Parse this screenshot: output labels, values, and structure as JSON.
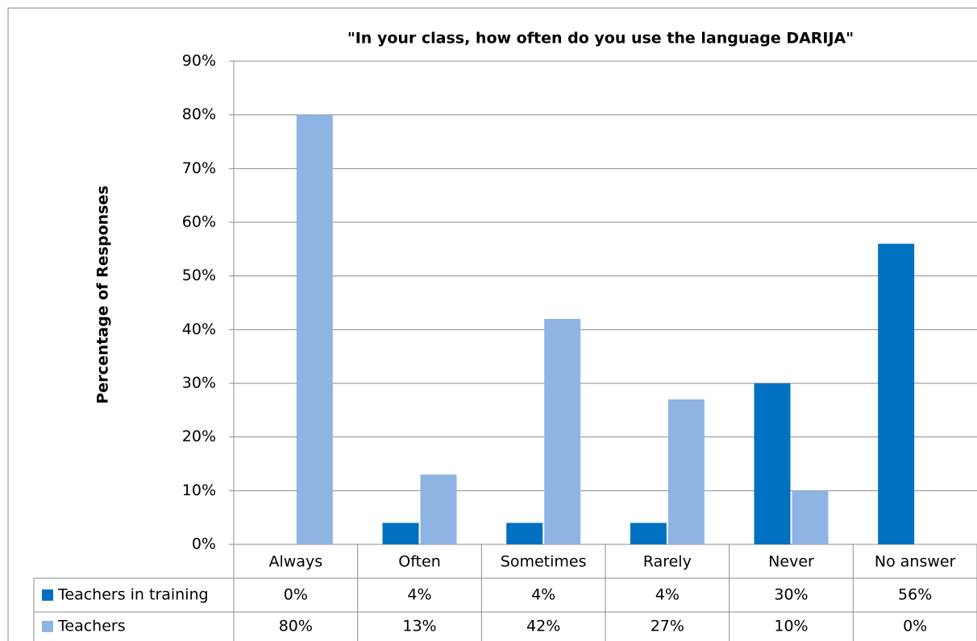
{
  "chart_data": {
    "type": "bar",
    "title": "\"In your class, how often do you use the language DARIJA\"",
    "y_label": "Percentage of Responses",
    "categories": [
      "Always",
      "Often",
      "Sometimes",
      "Rarely",
      "Never",
      "No answer"
    ],
    "series": [
      {
        "name": "Teachers in training",
        "color": "#0070c0",
        "values": [
          0,
          4,
          4,
          4,
          30,
          56
        ],
        "value_labels": [
          "0%",
          "4%",
          "4%",
          "4%",
          "30%",
          "56%"
        ]
      },
      {
        "name": "Teachers",
        "color": "#8eb4e3",
        "values": [
          80,
          13,
          42,
          27,
          10,
          0
        ],
        "value_labels": [
          "80%",
          "13%",
          "42%",
          "27%",
          "10%",
          "0%"
        ]
      }
    ],
    "ylim": [
      0,
      90
    ],
    "yticks": [
      {
        "value": 0,
        "label": "0%"
      },
      {
        "value": 10,
        "label": "10%"
      },
      {
        "value": 20,
        "label": "20%"
      },
      {
        "value": 30,
        "label": "30%"
      },
      {
        "value": 40,
        "label": "40%"
      },
      {
        "value": 50,
        "label": "50%"
      },
      {
        "value": 60,
        "label": "60%"
      },
      {
        "value": 70,
        "label": "70%"
      },
      {
        "value": 80,
        "label": "80%"
      },
      {
        "value": 90,
        "label": "90%"
      }
    ],
    "grid": true
  }
}
